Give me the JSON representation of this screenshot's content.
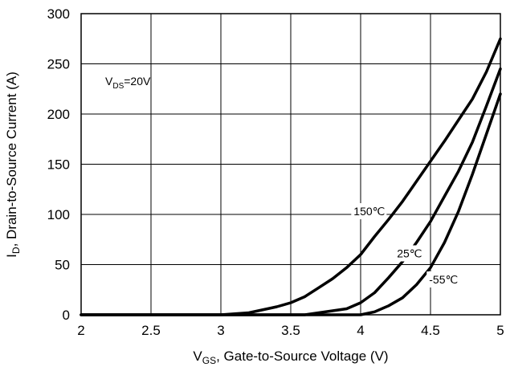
{
  "chart_data": {
    "type": "line",
    "xlabel_main": "V",
    "xlabel_sub": "GS",
    "xlabel_rest": ", Gate-to-Source Voltage (V)",
    "ylabel_main": "I",
    "ylabel_sub": "D",
    "ylabel_rest": ", Drain-to-Source Current (A)",
    "xlim": [
      2,
      5
    ],
    "ylim": [
      0,
      300
    ],
    "xticks": [
      "2",
      "2.5",
      "3",
      "3.5",
      "4",
      "4.5",
      "5"
    ],
    "yticks": [
      "0",
      "50",
      "100",
      "150",
      "200",
      "250",
      "300"
    ],
    "grid": true,
    "annotation": {
      "main": "V",
      "sub": "DS",
      "rest": "=20V"
    },
    "series": [
      {
        "name": "150℃",
        "points": [
          [
            2.0,
            0
          ],
          [
            2.5,
            0
          ],
          [
            3.0,
            0
          ],
          [
            3.2,
            2
          ],
          [
            3.4,
            8
          ],
          [
            3.5,
            12
          ],
          [
            3.6,
            18
          ],
          [
            3.7,
            27
          ],
          [
            3.8,
            36
          ],
          [
            3.9,
            47
          ],
          [
            4.0,
            60
          ],
          [
            4.1,
            78
          ],
          [
            4.2,
            95
          ],
          [
            4.3,
            113
          ],
          [
            4.4,
            133
          ],
          [
            4.5,
            153
          ],
          [
            4.6,
            173
          ],
          [
            4.7,
            194
          ],
          [
            4.8,
            215
          ],
          [
            4.9,
            242
          ],
          [
            5.0,
            275
          ]
        ]
      },
      {
        "name": "25℃",
        "points": [
          [
            2.0,
            0
          ],
          [
            3.0,
            0
          ],
          [
            3.6,
            0
          ],
          [
            3.7,
            2
          ],
          [
            3.8,
            4
          ],
          [
            3.9,
            6
          ],
          [
            4.0,
            12
          ],
          [
            4.1,
            22
          ],
          [
            4.2,
            37
          ],
          [
            4.3,
            53
          ],
          [
            4.4,
            72
          ],
          [
            4.5,
            93
          ],
          [
            4.6,
            118
          ],
          [
            4.7,
            143
          ],
          [
            4.8,
            172
          ],
          [
            4.9,
            208
          ],
          [
            5.0,
            245
          ]
        ]
      },
      {
        "name": "-55℃",
        "points": [
          [
            2.0,
            0
          ],
          [
            3.0,
            0
          ],
          [
            4.0,
            0
          ],
          [
            4.1,
            3
          ],
          [
            4.2,
            9
          ],
          [
            4.3,
            17
          ],
          [
            4.4,
            30
          ],
          [
            4.5,
            47
          ],
          [
            4.6,
            72
          ],
          [
            4.7,
            103
          ],
          [
            4.8,
            140
          ],
          [
            4.9,
            180
          ],
          [
            5.0,
            220
          ]
        ]
      }
    ],
    "curve_labels": [
      {
        "text": "150℃",
        "x": 3.95,
        "y": 100
      },
      {
        "text": "25℃",
        "x": 4.26,
        "y": 58
      },
      {
        "text": "-55℃",
        "x": 4.49,
        "y": 32
      }
    ]
  }
}
